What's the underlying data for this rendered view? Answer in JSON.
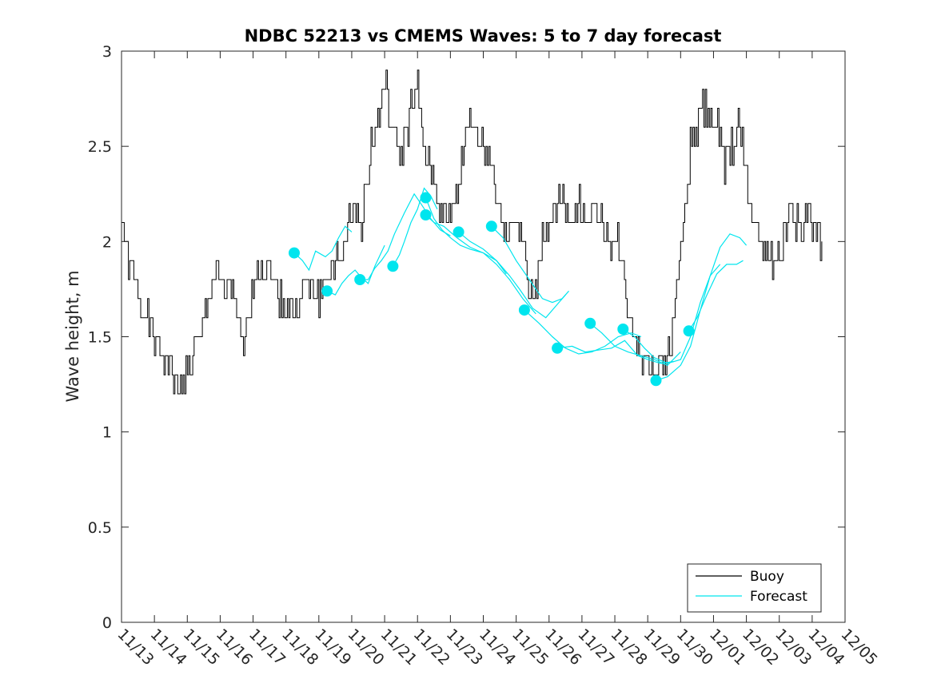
{
  "chart_data": {
    "type": "line",
    "title": "NDBC 52213 vs CMEMS Waves: 5 to 7 day forecast",
    "xlabel": "",
    "ylabel": "Wave height, m",
    "ylim": [
      0,
      3
    ],
    "yticks": [
      0,
      0.5,
      1,
      1.5,
      2,
      2.5,
      3
    ],
    "ytick_labels": [
      "0",
      "0.5",
      "1",
      "1.5",
      "2",
      "2.5",
      "3"
    ],
    "xlim": [
      0,
      22
    ],
    "xticks": [
      0,
      1,
      2,
      3,
      4,
      5,
      6,
      7,
      8,
      9,
      10,
      11,
      12,
      13,
      14,
      15,
      16,
      17,
      18,
      19,
      20,
      21,
      22
    ],
    "xtick_labels": [
      "11/13",
      "11/14",
      "11/15",
      "11/16",
      "11/17",
      "11/18",
      "11/19",
      "11/20",
      "11/21",
      "11/22",
      "11/23",
      "11/24",
      "11/25",
      "11/26",
      "11/27",
      "11/28",
      "11/29",
      "11/30",
      "12/01",
      "12/02",
      "12/03",
      "12/04",
      "12/05"
    ],
    "x_units": "days since 11/13",
    "grid": false,
    "legend": {
      "location": "bottom-right",
      "entries": [
        "Buoy",
        "Forecast"
      ]
    },
    "colors": {
      "buoy": "#000000",
      "forecast": "#00e5ee",
      "axes": "#262626"
    },
    "series": [
      {
        "name": "Buoy",
        "style": "line",
        "color": "#000000",
        "keypoints": [
          [
            0.0,
            2.1
          ],
          [
            0.2,
            1.9
          ],
          [
            0.5,
            1.7
          ],
          [
            0.8,
            1.6
          ],
          [
            1.0,
            1.5
          ],
          [
            1.3,
            1.4
          ],
          [
            1.6,
            1.3
          ],
          [
            1.7,
            1.2
          ],
          [
            1.9,
            1.3
          ],
          [
            2.1,
            1.35
          ],
          [
            2.4,
            1.5
          ],
          [
            2.6,
            1.7
          ],
          [
            2.9,
            1.85
          ],
          [
            3.1,
            1.75
          ],
          [
            3.3,
            1.8
          ],
          [
            3.5,
            1.6
          ],
          [
            3.7,
            1.45
          ],
          [
            3.9,
            1.7
          ],
          [
            4.2,
            1.9
          ],
          [
            4.5,
            1.85
          ],
          [
            4.8,
            1.7
          ],
          [
            5.2,
            1.65
          ],
          [
            5.6,
            1.75
          ],
          [
            6.0,
            1.7
          ],
          [
            6.4,
            1.85
          ],
          [
            6.8,
            1.95
          ],
          [
            7.0,
            2.2
          ],
          [
            7.3,
            2.1
          ],
          [
            7.6,
            2.55
          ],
          [
            7.8,
            2.65
          ],
          [
            7.95,
            2.85
          ],
          [
            8.1,
            2.7
          ],
          [
            8.3,
            2.5
          ],
          [
            8.5,
            2.45
          ],
          [
            8.7,
            2.6
          ],
          [
            8.9,
            2.75
          ],
          [
            9.0,
            2.8
          ],
          [
            9.2,
            2.45
          ],
          [
            9.5,
            2.3
          ],
          [
            9.8,
            2.1
          ],
          [
            10.0,
            2.15
          ],
          [
            10.2,
            2.25
          ],
          [
            10.5,
            2.6
          ],
          [
            10.7,
            2.65
          ],
          [
            10.9,
            2.5
          ],
          [
            11.1,
            2.55
          ],
          [
            11.3,
            2.35
          ],
          [
            11.5,
            2.15
          ],
          [
            11.7,
            2.0
          ],
          [
            12.0,
            2.1
          ],
          [
            12.2,
            2.05
          ],
          [
            12.4,
            1.75
          ],
          [
            12.6,
            1.7
          ],
          [
            12.8,
            2.0
          ],
          [
            13.1,
            2.1
          ],
          [
            13.3,
            2.3
          ],
          [
            13.5,
            2.15
          ],
          [
            13.7,
            2.1
          ],
          [
            13.9,
            2.2
          ],
          [
            14.1,
            2.1
          ],
          [
            14.3,
            2.15
          ],
          [
            14.5,
            2.2
          ],
          [
            14.7,
            2.05
          ],
          [
            14.9,
            2.0
          ],
          [
            15.1,
            2.0
          ],
          [
            15.3,
            1.75
          ],
          [
            15.5,
            1.6
          ],
          [
            15.7,
            1.4
          ],
          [
            15.9,
            1.35
          ],
          [
            16.1,
            1.4
          ],
          [
            16.3,
            1.3
          ],
          [
            16.5,
            1.35
          ],
          [
            16.7,
            1.5
          ],
          [
            16.9,
            1.8
          ],
          [
            17.1,
            2.1
          ],
          [
            17.3,
            2.5
          ],
          [
            17.5,
            2.6
          ],
          [
            17.7,
            2.7
          ],
          [
            17.9,
            2.65
          ],
          [
            18.1,
            2.6
          ],
          [
            18.3,
            2.4
          ],
          [
            18.5,
            2.45
          ],
          [
            18.7,
            2.6
          ],
          [
            18.9,
            2.5
          ],
          [
            19.1,
            2.2
          ],
          [
            19.3,
            2.1
          ],
          [
            19.5,
            2.0
          ],
          [
            19.7,
            1.95
          ],
          [
            19.9,
            1.85
          ],
          [
            20.1,
            2.0
          ],
          [
            20.3,
            2.15
          ],
          [
            20.5,
            2.1
          ],
          [
            20.7,
            2.05
          ],
          [
            20.9,
            2.15
          ],
          [
            21.1,
            2.05
          ],
          [
            21.3,
            2.0
          ]
        ]
      },
      {
        "name": "Forecast",
        "style": "line",
        "color": "#00e5ee",
        "segments": [
          [
            [
              5.25,
              1.94
            ],
            [
              5.5,
              1.9
            ],
            [
              5.7,
              1.85
            ],
            [
              5.9,
              1.95
            ],
            [
              6.2,
              1.92
            ],
            [
              6.4,
              1.95
            ],
            [
              6.6,
              2.02
            ],
            [
              6.8,
              2.08
            ],
            [
              7.0,
              2.05
            ]
          ],
          [
            [
              6.25,
              1.74
            ],
            [
              6.5,
              1.72
            ],
            [
              6.7,
              1.78
            ],
            [
              6.9,
              1.82
            ],
            [
              7.1,
              1.85
            ],
            [
              7.3,
              1.81
            ],
            [
              7.5,
              1.78
            ],
            [
              7.7,
              1.87
            ],
            [
              8.0,
              1.98
            ]
          ],
          [
            [
              7.25,
              1.8
            ],
            [
              7.5,
              1.8
            ],
            [
              7.7,
              1.86
            ],
            [
              7.9,
              1.9
            ],
            [
              8.1,
              1.95
            ],
            [
              8.3,
              2.04
            ],
            [
              8.6,
              2.15
            ],
            [
              8.9,
              2.25
            ],
            [
              9.1,
              2.2
            ],
            [
              9.4,
              2.12
            ],
            [
              9.7,
              2.06
            ],
            [
              10.0,
              2.03
            ]
          ],
          [
            [
              8.25,
              1.87
            ],
            [
              8.45,
              1.93
            ],
            [
              8.6,
              2.0
            ],
            [
              8.8,
              2.1
            ],
            [
              9.0,
              2.17
            ],
            [
              9.2,
              2.28
            ],
            [
              9.4,
              2.24
            ],
            [
              9.6,
              2.17
            ]
          ],
          [
            [
              9.25,
              2.23
            ],
            [
              9.5,
              2.12
            ],
            [
              9.75,
              2.06
            ],
            [
              10.0,
              2.02
            ],
            [
              10.3,
              1.98
            ],
            [
              10.6,
              1.96
            ],
            [
              11.0,
              1.94
            ],
            [
              11.4,
              1.9
            ],
            [
              11.7,
              1.83
            ]
          ],
          [
            [
              9.25,
              2.14
            ],
            [
              9.5,
              2.1
            ],
            [
              9.8,
              2.08
            ],
            [
              10.2,
              2.02
            ],
            [
              10.6,
              1.97
            ],
            [
              11.0,
              1.94
            ],
            [
              11.4,
              1.88
            ],
            [
              11.8,
              1.8
            ],
            [
              12.2,
              1.7
            ],
            [
              12.6,
              1.62
            ]
          ],
          [
            [
              10.25,
              2.05
            ],
            [
              10.6,
              2.0
            ],
            [
              11.0,
              1.96
            ],
            [
              11.4,
              1.9
            ],
            [
              11.8,
              1.82
            ],
            [
              12.1,
              1.75
            ],
            [
              12.5,
              1.65
            ],
            [
              12.9,
              1.6
            ],
            [
              13.2,
              1.66
            ],
            [
              13.5,
              1.72
            ]
          ],
          [
            [
              11.25,
              2.08
            ],
            [
              11.6,
              2.02
            ],
            [
              12.0,
              1.9
            ],
            [
              12.4,
              1.8
            ],
            [
              12.8,
              1.7
            ],
            [
              13.1,
              1.68
            ],
            [
              13.4,
              1.7
            ],
            [
              13.6,
              1.74
            ]
          ],
          [
            [
              12.25,
              1.64
            ],
            [
              12.7,
              1.57
            ],
            [
              13.1,
              1.5
            ],
            [
              13.5,
              1.44
            ],
            [
              13.9,
              1.41
            ],
            [
              14.3,
              1.42
            ],
            [
              14.7,
              1.45
            ],
            [
              15.1,
              1.5
            ],
            [
              15.5,
              1.52
            ],
            [
              15.8,
              1.5
            ]
          ],
          [
            [
              13.25,
              1.44
            ],
            [
              13.7,
              1.45
            ],
            [
              14.1,
              1.42
            ],
            [
              14.5,
              1.43
            ],
            [
              14.9,
              1.44
            ],
            [
              15.3,
              1.48
            ],
            [
              15.7,
              1.4
            ],
            [
              16.0,
              1.38
            ],
            [
              16.4,
              1.36
            ],
            [
              16.8,
              1.37
            ]
          ],
          [
            [
              14.25,
              1.57
            ],
            [
              14.6,
              1.52
            ],
            [
              15.0,
              1.45
            ],
            [
              15.4,
              1.42
            ],
            [
              15.8,
              1.4
            ],
            [
              16.2,
              1.38
            ],
            [
              16.6,
              1.35
            ],
            [
              17.0,
              1.42
            ]
          ],
          [
            [
              15.25,
              1.54
            ],
            [
              15.6,
              1.5
            ],
            [
              15.9,
              1.44
            ],
            [
              16.2,
              1.39
            ],
            [
              16.6,
              1.36
            ],
            [
              17.0,
              1.38
            ],
            [
              17.3,
              1.5
            ],
            [
              17.6,
              1.68
            ],
            [
              17.9,
              1.82
            ],
            [
              18.2,
              1.88
            ]
          ],
          [
            [
              16.25,
              1.27
            ],
            [
              16.6,
              1.29
            ],
            [
              17.0,
              1.35
            ],
            [
              17.3,
              1.45
            ],
            [
              17.6,
              1.64
            ],
            [
              17.9,
              1.82
            ],
            [
              18.2,
              1.97
            ],
            [
              18.5,
              2.04
            ],
            [
              18.8,
              2.02
            ],
            [
              19.0,
              1.98
            ]
          ],
          [
            [
              17.25,
              1.53
            ],
            [
              17.5,
              1.6
            ],
            [
              17.8,
              1.72
            ],
            [
              18.1,
              1.83
            ],
            [
              18.4,
              1.88
            ],
            [
              18.7,
              1.88
            ],
            [
              18.9,
              1.9
            ]
          ]
        ]
      },
      {
        "name": "Forecast start points",
        "style": "marker",
        "color": "#00e5ee",
        "x": [
          5.25,
          6.25,
          7.25,
          8.25,
          9.25,
          9.25,
          10.25,
          11.25,
          12.25,
          13.25,
          14.25,
          15.25,
          16.25,
          17.25
        ],
        "values": [
          1.94,
          1.74,
          1.8,
          1.87,
          2.23,
          2.14,
          2.05,
          2.08,
          1.64,
          1.44,
          1.57,
          1.54,
          1.27,
          1.53
        ]
      }
    ]
  }
}
